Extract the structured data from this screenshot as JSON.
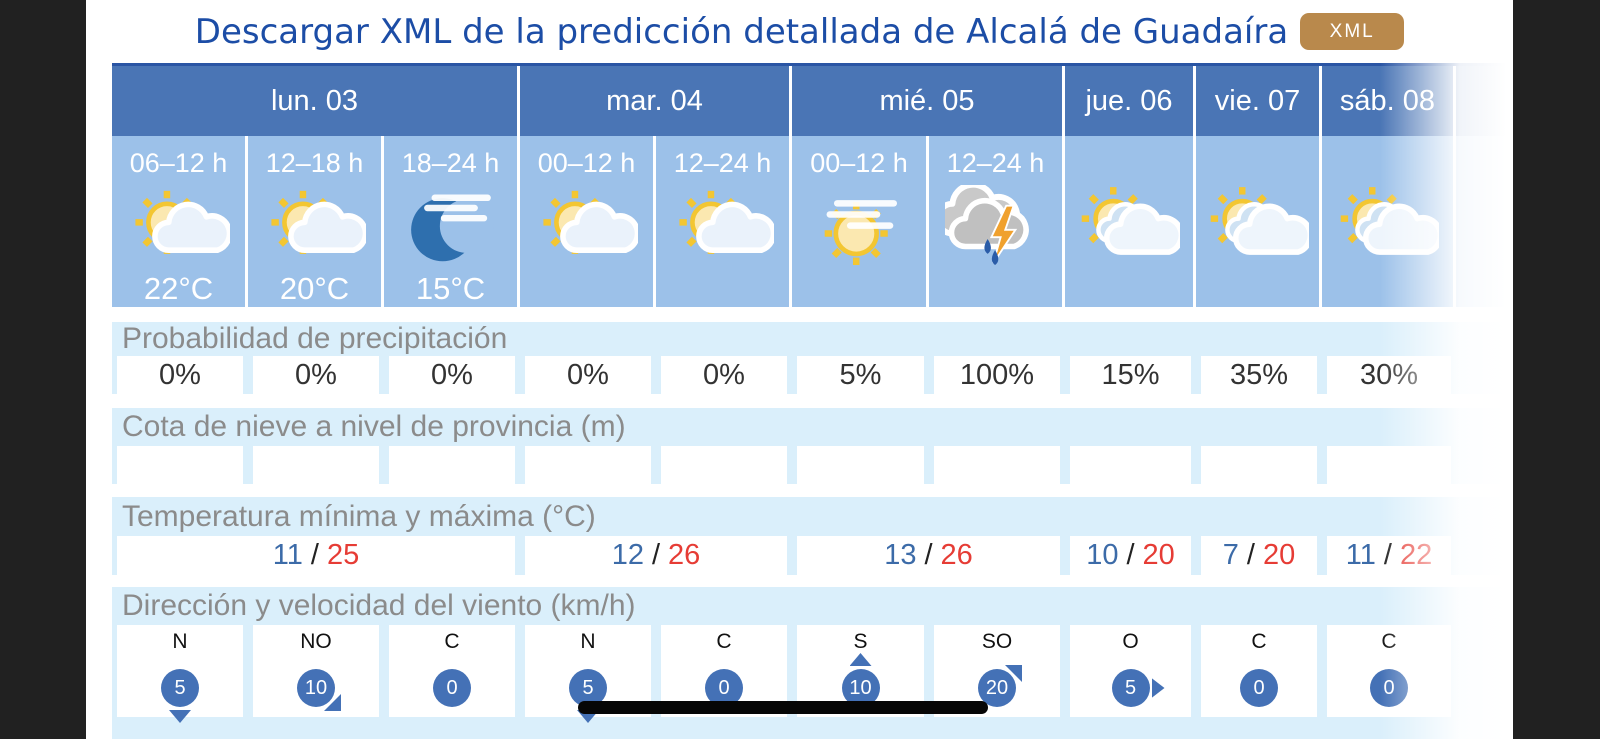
{
  "title": {
    "text": "Descargar XML de la predicción detallada de Alcalá de Guadaíra",
    "badge": "XML"
  },
  "days": [
    {
      "label": "lun. 03",
      "colspan": 3
    },
    {
      "label": "mar. 04",
      "colspan": 2
    },
    {
      "label": "mié. 05",
      "colspan": 2
    },
    {
      "label": "jue. 06",
      "colspan": 1
    },
    {
      "label": "vie. 07",
      "colspan": 1
    },
    {
      "label": "sáb. 08",
      "colspan": 1
    }
  ],
  "columns": [
    {
      "time": "06–12 h",
      "icon": "sun-cloud",
      "temp": "22°C",
      "precip": "0%",
      "snow": "",
      "wind": {
        "dir": "N",
        "speed": "5",
        "arrow": "down"
      }
    },
    {
      "time": "12–18 h",
      "icon": "sun-cloud",
      "temp": "20°C",
      "precip": "0%",
      "snow": "",
      "wind": {
        "dir": "NO",
        "speed": "10",
        "arrow": "down-right"
      }
    },
    {
      "time": "18–24 h",
      "icon": "moon-high-clouds",
      "temp": "15°C",
      "precip": "0%",
      "snow": "",
      "wind": {
        "dir": "C",
        "speed": "0",
        "arrow": "none"
      }
    },
    {
      "time": "00–12 h",
      "icon": "sun-cloud",
      "temp": "",
      "precip": "0%",
      "snow": "",
      "wind": {
        "dir": "N",
        "speed": "5",
        "arrow": "down"
      }
    },
    {
      "time": "12–24 h",
      "icon": "sun-cloud",
      "temp": "",
      "precip": "0%",
      "snow": "",
      "wind": {
        "dir": "C",
        "speed": "0",
        "arrow": "none"
      }
    },
    {
      "time": "00–12 h",
      "icon": "sun-high-clouds",
      "temp": "",
      "precip": "5%",
      "snow": "",
      "wind": {
        "dir": "S",
        "speed": "10",
        "arrow": "up"
      }
    },
    {
      "time": "12–24 h",
      "icon": "storm-rain",
      "temp": "",
      "precip": "100%",
      "snow": "",
      "wind": {
        "dir": "SO",
        "speed": "20",
        "arrow": "up-right"
      }
    },
    {
      "time": "",
      "icon": "sun-clouds",
      "temp": "",
      "precip": "15%",
      "snow": "",
      "wind": {
        "dir": "O",
        "speed": "5",
        "arrow": "right"
      }
    },
    {
      "time": "",
      "icon": "sun-clouds",
      "temp": "",
      "precip": "35%",
      "snow": "",
      "wind": {
        "dir": "C",
        "speed": "0",
        "arrow": "none"
      }
    },
    {
      "time": "",
      "icon": "sun-clouds",
      "temp": "",
      "precip": "30%",
      "snow": "",
      "wind": {
        "dir": "C",
        "speed": "0",
        "arrow": "none"
      }
    }
  ],
  "sections": {
    "precipitation": "Probabilidad de precipitación",
    "snow": "Cota de nieve a nivel de provincia (m)",
    "temperature": "Temperatura mínima y máxima (°C)",
    "wind": "Dirección y velocidad del viento (km/h)"
  },
  "temp_separator": "/",
  "temperatures": [
    {
      "min": "11",
      "max": "25"
    },
    {
      "min": "12",
      "max": "26"
    },
    {
      "min": "13",
      "max": "26"
    },
    {
      "min": "10",
      "max": "20"
    },
    {
      "min": "7",
      "max": "20"
    },
    {
      "min": "11",
      "max": "22"
    }
  ],
  "colors": {
    "title_blue": "#1c4da6",
    "badge_gold": "#b9894c",
    "header_blue": "#4a75b5",
    "cell_blue": "#9cc1e9",
    "band_blue": "#daeffb",
    "wind_circle_blue": "#4471b6",
    "temp_min_blue": "#3c6ba8",
    "temp_max_red": "#e63c35"
  }
}
